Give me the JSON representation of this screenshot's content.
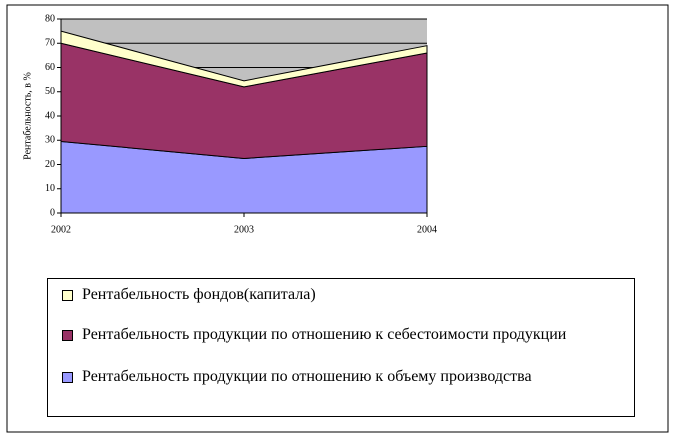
{
  "chart_data": {
    "type": "stacked_area",
    "y_label": "Рентабельность, в %",
    "categories": [
      "2002",
      "2003",
      "2004"
    ],
    "series": [
      {
        "name": "Рентабельность продукции по отношению к объему производства",
        "color": "#9999ff",
        "values": [
          29.5,
          22.5,
          27.5
        ]
      },
      {
        "name": "Рентабельность продукции по отношению к себестоимости продукции",
        "color": "#993366",
        "values": [
          40.5,
          29.5,
          38.5
        ]
      },
      {
        "name": "Рентабельность фондов(капитала)",
        "color": "#ffffcc",
        "values": [
          5,
          2.5,
          3
        ]
      }
    ],
    "ylim": [
      0,
      80
    ],
    "yticks": [
      0,
      10,
      20,
      30,
      40,
      50,
      60,
      70,
      80
    ],
    "grid": true,
    "plot_background": "#c0c0c0"
  }
}
